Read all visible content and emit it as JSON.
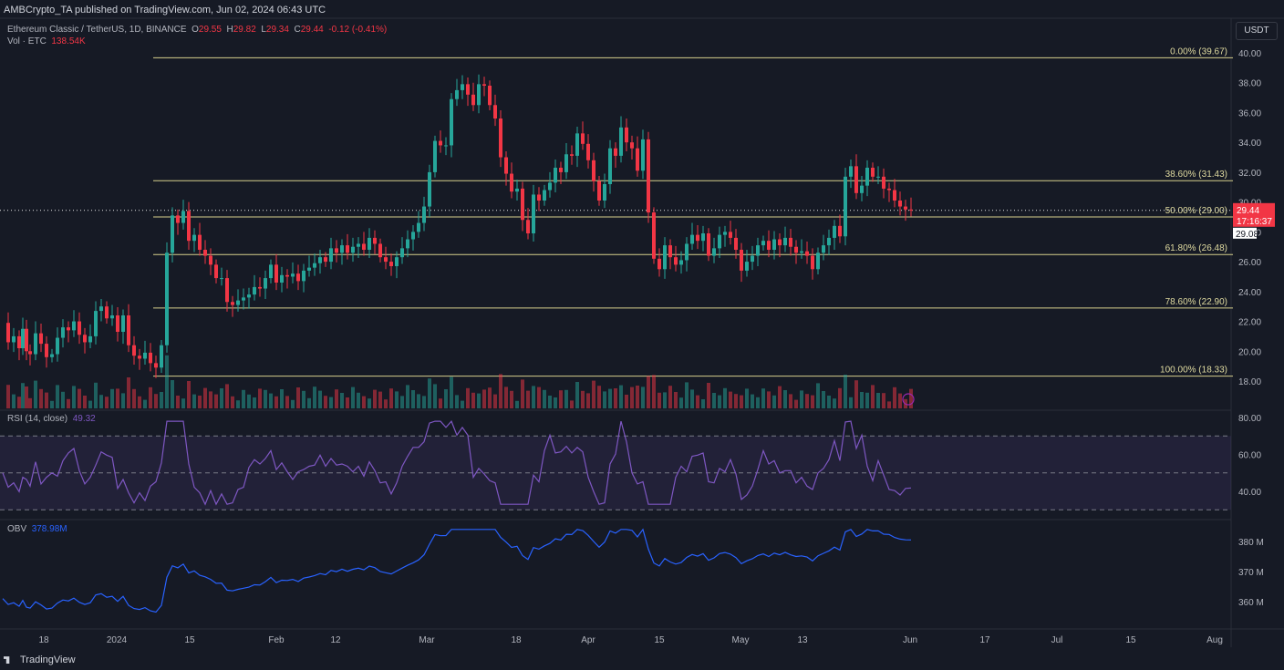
{
  "header": {
    "publisher": "AMBCrypto_TA published on TradingView.com, Jun 02, 2024 06:43 UTC",
    "symbol": "Ethereum Classic / TetherUS, 1D, BINANCE",
    "ohlc": {
      "o_label": "O",
      "o": "29.55",
      "h_label": "H",
      "h": "29.82",
      "l_label": "L",
      "l": "29.34",
      "c_label": "C",
      "c": "29.44",
      "change": "-0.12 (-0.41%)"
    },
    "vol_label": "Vol · ETC",
    "vol_value": "138.54K",
    "currency": "USDT"
  },
  "price_labels": {
    "last": "29.44",
    "countdown": "17:16:37",
    "cursor": "29.08"
  },
  "rsi_legend": {
    "label": "RSI (14, close)",
    "value": "49.32"
  },
  "obv_legend": {
    "label": "OBV",
    "value": "378.98M"
  },
  "footer": {
    "brand": "TradingView"
  },
  "colors": {
    "up": "#26a69a",
    "down": "#f23645",
    "fib": "#d6cf8c",
    "rsi": "#7e57c2",
    "obv": "#2962ff",
    "bg": "#161a25"
  },
  "chart_data": {
    "type": "candlestick",
    "x_ticks": [
      "18",
      "2024",
      "15",
      "Feb",
      "12",
      "Mar",
      "18",
      "Apr",
      "15",
      "May",
      "13",
      "Jun",
      "17",
      "Jul",
      "15",
      "Aug"
    ],
    "y_ticks": [
      "40.00",
      "38.00",
      "36.00",
      "34.00",
      "32.00",
      "30.00",
      "28.00",
      "26.00",
      "24.00",
      "22.00",
      "20.00",
      "18.00"
    ],
    "ylim": [
      17.5,
      40.5
    ],
    "fib_levels": [
      {
        "label": "0.00% (39.67)",
        "value": 39.67
      },
      {
        "label": "38.60% (31.43)",
        "value": 31.43
      },
      {
        "label": "50.00% (29.00)",
        "value": 29.0
      },
      {
        "label": "61.80% (26.48)",
        "value": 26.48
      },
      {
        "label": "78.60% (22.90)",
        "value": 22.9
      },
      {
        "label": "100.00% (18.33)",
        "value": 18.33
      }
    ],
    "price_path": [
      [
        0,
        21.9
      ],
      [
        6,
        20.6
      ],
      [
        12,
        21.0
      ],
      [
        18,
        20.2
      ],
      [
        22,
        21.5
      ],
      [
        26,
        20.0
      ],
      [
        30,
        19.8
      ],
      [
        36,
        21.2
      ],
      [
        42,
        20.5
      ],
      [
        48,
        19.6
      ],
      [
        54,
        19.8
      ],
      [
        60,
        20.9
      ],
      [
        66,
        21.6
      ],
      [
        72,
        21.4
      ],
      [
        78,
        22.0
      ],
      [
        84,
        21.1
      ],
      [
        90,
        20.6
      ],
      [
        96,
        21.0
      ],
      [
        102,
        22.7
      ],
      [
        108,
        23.0
      ],
      [
        114,
        22.2
      ],
      [
        120,
        22.4
      ],
      [
        126,
        21.3
      ],
      [
        132,
        22.4
      ],
      [
        138,
        20.4
      ],
      [
        144,
        19.7
      ],
      [
        150,
        19.5
      ],
      [
        156,
        19.9
      ],
      [
        162,
        19.2
      ],
      [
        168,
        18.9
      ],
      [
        174,
        20.4
      ],
      [
        180,
        26.6
      ],
      [
        186,
        29.1
      ],
      [
        192,
        28.6
      ],
      [
        198,
        29.4
      ],
      [
        204,
        27.4
      ],
      [
        210,
        27.8
      ],
      [
        216,
        26.8
      ],
      [
        222,
        26.4
      ],
      [
        228,
        25.8
      ],
      [
        234,
        24.9
      ],
      [
        240,
        24.9
      ],
      [
        246,
        23.3
      ],
      [
        252,
        23.1
      ],
      [
        258,
        23.4
      ],
      [
        264,
        23.6
      ],
      [
        270,
        23.8
      ],
      [
        276,
        24.3
      ],
      [
        282,
        24.2
      ],
      [
        288,
        24.9
      ],
      [
        294,
        25.8
      ],
      [
        300,
        24.6
      ],
      [
        306,
        25.1
      ],
      [
        312,
        25.0
      ],
      [
        318,
        25.2
      ],
      [
        324,
        24.7
      ],
      [
        330,
        25.4
      ],
      [
        336,
        25.6
      ],
      [
        342,
        25.9
      ],
      [
        348,
        26.3
      ],
      [
        354,
        26.0
      ],
      [
        360,
        26.9
      ],
      [
        366,
        26.6
      ],
      [
        372,
        27.1
      ],
      [
        378,
        26.6
      ],
      [
        384,
        27.0
      ],
      [
        390,
        27.2
      ],
      [
        396,
        26.8
      ],
      [
        402,
        27.6
      ],
      [
        408,
        27.2
      ],
      [
        414,
        26.3
      ],
      [
        420,
        26.0
      ],
      [
        426,
        25.7
      ],
      [
        432,
        26.3
      ],
      [
        438,
        26.9
      ],
      [
        444,
        27.5
      ],
      [
        450,
        28.0
      ],
      [
        456,
        28.6
      ],
      [
        462,
        29.7
      ],
      [
        468,
        32.0
      ],
      [
        474,
        34.1
      ],
      [
        480,
        33.8
      ],
      [
        486,
        33.8
      ],
      [
        492,
        36.9
      ],
      [
        498,
        37.5
      ],
      [
        504,
        37.9
      ],
      [
        510,
        37.2
      ],
      [
        516,
        36.5
      ],
      [
        522,
        37.9
      ],
      [
        528,
        37.8
      ],
      [
        534,
        36.5
      ],
      [
        540,
        35.6
      ],
      [
        546,
        33.0
      ],
      [
        552,
        31.9
      ],
      [
        558,
        30.7
      ],
      [
        564,
        30.9
      ],
      [
        570,
        28.8
      ],
      [
        576,
        27.9
      ],
      [
        582,
        30.5
      ],
      [
        588,
        30.1
      ],
      [
        594,
        30.8
      ],
      [
        600,
        31.3
      ],
      [
        606,
        32.3
      ],
      [
        612,
        32.0
      ],
      [
        618,
        33.2
      ],
      [
        624,
        33.1
      ],
      [
        630,
        34.6
      ],
      [
        636,
        33.9
      ],
      [
        642,
        32.8
      ],
      [
        648,
        31.4
      ],
      [
        654,
        30.1
      ],
      [
        660,
        31.2
      ],
      [
        666,
        33.6
      ],
      [
        672,
        33.1
      ],
      [
        678,
        35.0
      ],
      [
        684,
        34.0
      ],
      [
        690,
        33.6
      ],
      [
        696,
        32.1
      ],
      [
        702,
        34.2
      ],
      [
        708,
        29.3
      ],
      [
        714,
        26.2
      ],
      [
        720,
        25.5
      ],
      [
        726,
        27.1
      ],
      [
        732,
        26.3
      ],
      [
        738,
        25.8
      ],
      [
        744,
        26.1
      ],
      [
        750,
        27.2
      ],
      [
        756,
        27.8
      ],
      [
        762,
        27.4
      ],
      [
        768,
        27.9
      ],
      [
        774,
        26.4
      ],
      [
        780,
        26.9
      ],
      [
        786,
        27.8
      ],
      [
        792,
        28.0
      ],
      [
        798,
        27.6
      ],
      [
        804,
        26.8
      ],
      [
        810,
        25.4
      ],
      [
        816,
        26.0
      ],
      [
        822,
        26.4
      ],
      [
        828,
        27.1
      ],
      [
        834,
        27.4
      ],
      [
        840,
        26.8
      ],
      [
        846,
        27.5
      ],
      [
        852,
        27.1
      ],
      [
        858,
        27.6
      ],
      [
        864,
        27.0
      ],
      [
        870,
        26.6
      ],
      [
        876,
        26.7
      ],
      [
        882,
        26.4
      ],
      [
        888,
        25.5
      ],
      [
        894,
        26.6
      ],
      [
        900,
        27.1
      ],
      [
        906,
        27.6
      ],
      [
        912,
        28.4
      ],
      [
        918,
        27.7
      ],
      [
        924,
        31.7
      ],
      [
        930,
        32.4
      ],
      [
        936,
        30.6
      ],
      [
        942,
        31.1
      ],
      [
        948,
        32.3
      ],
      [
        954,
        31.7
      ],
      [
        960,
        31.7
      ],
      [
        966,
        30.9
      ],
      [
        972,
        30.8
      ],
      [
        978,
        30.1
      ],
      [
        984,
        29.7
      ],
      [
        990,
        29.5
      ],
      [
        996,
        29.44
      ]
    ],
    "rsi": {
      "ylim": [
        30,
        85
      ],
      "ticks": [
        "80.00",
        "60.00",
        "40.00"
      ],
      "band": [
        30,
        70
      ],
      "mid": 50
    },
    "obv": {
      "ylim": [
        355,
        385
      ],
      "ticks": [
        "380 M",
        "370 M",
        "360 M"
      ]
    }
  }
}
